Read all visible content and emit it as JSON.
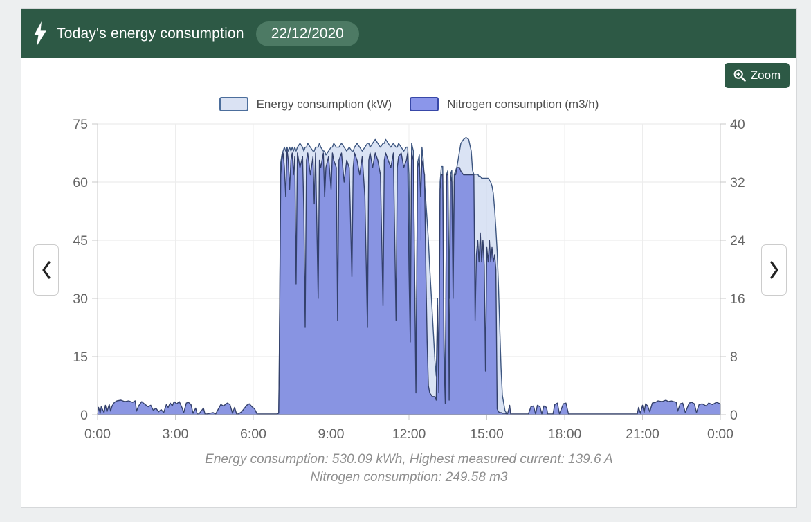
{
  "header": {
    "title": "Today's energy consumption",
    "date": "22/12/2020",
    "colors": {
      "header_green": "#2d5945",
      "badge_green": "#4d7a64"
    }
  },
  "toolbar": {
    "zoom_label": "Zoom"
  },
  "footer": {
    "line1": "Energy consumption: 530.09 kWh, Highest measured current: 139.6 A",
    "line2": "Nitrogen consumption: 249.58 m3"
  },
  "chart_data": {
    "type": "area",
    "title": "",
    "legend_position": "top",
    "grid": true,
    "x_axis": {
      "ticks": [
        "0:00",
        "3:00",
        "6:00",
        "9:00",
        "12:00",
        "15:00",
        "18:00",
        "21:00",
        "0:00"
      ],
      "hours": [
        0,
        3,
        6,
        9,
        12,
        15,
        18,
        21,
        24
      ],
      "range_hours": [
        0,
        24
      ]
    },
    "left_axis": {
      "ticks": [
        0,
        15,
        30,
        45,
        60,
        75
      ],
      "max": 75,
      "unit": "kW"
    },
    "right_axis": {
      "ticks": [
        0,
        8,
        16,
        24,
        32,
        40
      ],
      "max": 40,
      "unit": "m3/h"
    },
    "series": [
      {
        "name": "Energy consumption (kW)",
        "axis": "left",
        "fill": "rgba(206,217,240,0.75)",
        "stroke": "#3d5680",
        "legend_fill": "#dae2f3",
        "legend_border": "#4c6e9c"
      },
      {
        "name": "Nitrogen consumption (m3/h)",
        "axis": "right",
        "fill": "rgba(129,141,223,0.92)",
        "stroke": "#33406b",
        "legend_fill": "#8b96ea",
        "legend_border": "#3848a8"
      }
    ],
    "points_format": [
      "hour",
      "energy_kW",
      "nitrogen_m3h"
    ],
    "points": [
      [
        0,
        0,
        0.2
      ],
      [
        0.04,
        0,
        1.0
      ],
      [
        0.1,
        0,
        0.2
      ],
      [
        0.14,
        0,
        1.1
      ],
      [
        0.25,
        0,
        0.3
      ],
      [
        0.3,
        0,
        1.3
      ],
      [
        0.36,
        0,
        0.4
      ],
      [
        0.45,
        0,
        1.4
      ],
      [
        0.5,
        0,
        0.5
      ],
      [
        0.56,
        0,
        1.2
      ],
      [
        0.65,
        0,
        1.7
      ],
      [
        0.75,
        0,
        1.9
      ],
      [
        0.9,
        0,
        2.0
      ],
      [
        1.05,
        0,
        1.8
      ],
      [
        1.2,
        0,
        1.9
      ],
      [
        1.35,
        0,
        1.7
      ],
      [
        1.45,
        0,
        1.9
      ],
      [
        1.5,
        0,
        0.5
      ],
      [
        1.58,
        0,
        1.2
      ],
      [
        1.7,
        0,
        1.8
      ],
      [
        1.8,
        0,
        1.5
      ],
      [
        1.95,
        0,
        1.1
      ],
      [
        2.05,
        0,
        1.3
      ],
      [
        2.15,
        0,
        0.6
      ],
      [
        2.25,
        0,
        0.9
      ],
      [
        2.35,
        0,
        0.4
      ],
      [
        2.45,
        0,
        0.7
      ],
      [
        2.55,
        0,
        0.3
      ],
      [
        2.65,
        0,
        1.4
      ],
      [
        2.72,
        0,
        1.0
      ],
      [
        2.8,
        0,
        1.6
      ],
      [
        2.88,
        0,
        1.2
      ],
      [
        2.95,
        0,
        1.8
      ],
      [
        3.05,
        0,
        1.5
      ],
      [
        3.15,
        0,
        1.8
      ],
      [
        3.25,
        0,
        1.0
      ],
      [
        3.32,
        0,
        0.3
      ],
      [
        3.42,
        0,
        1.6
      ],
      [
        3.5,
        0,
        1.7
      ],
      [
        3.6,
        0,
        1.4
      ],
      [
        3.68,
        0,
        0.2
      ],
      [
        3.78,
        0,
        0.9
      ],
      [
        3.84,
        0,
        0.1
      ],
      [
        3.9,
        0,
        0.1
      ],
      [
        4.08,
        0,
        0.9
      ],
      [
        4.14,
        0,
        0.1
      ],
      [
        4.2,
        0,
        0.1
      ],
      [
        4.45,
        0,
        0.3
      ],
      [
        4.55,
        0,
        0.1
      ],
      [
        4.75,
        0,
        1.4
      ],
      [
        4.85,
        0,
        1.2
      ],
      [
        5.0,
        0,
        1.6
      ],
      [
        5.1,
        0,
        1.4
      ],
      [
        5.2,
        0,
        0.2
      ],
      [
        5.28,
        0,
        1.0
      ],
      [
        5.36,
        0,
        0.1
      ],
      [
        5.42,
        0,
        0.1
      ],
      [
        5.55,
        0,
        0.4
      ],
      [
        5.75,
        0,
        1.3
      ],
      [
        5.85,
        0,
        1.5
      ],
      [
        5.95,
        0,
        1.1
      ],
      [
        6.05,
        0,
        0.8
      ],
      [
        6.15,
        0,
        0.1
      ],
      [
        6.3,
        0,
        0.1
      ],
      [
        6.9,
        0,
        0.1
      ],
      [
        6.98,
        0,
        0.2
      ],
      [
        7.0,
        12,
        6
      ],
      [
        7.06,
        65,
        33
      ],
      [
        7.1,
        67,
        35
      ],
      [
        7.15,
        68,
        36
      ],
      [
        7.2,
        69,
        34
      ],
      [
        7.25,
        68,
        30
      ],
      [
        7.3,
        69,
        36.5
      ],
      [
        7.35,
        68,
        35
      ],
      [
        7.4,
        69,
        31
      ],
      [
        7.45,
        68,
        35
      ],
      [
        7.5,
        69,
        36
      ],
      [
        7.55,
        68,
        33
      ],
      [
        7.6,
        69,
        35.5
      ],
      [
        7.65,
        68,
        18
      ],
      [
        7.7,
        69,
        36
      ],
      [
        7.8,
        70,
        34
      ],
      [
        7.9,
        69,
        35.5
      ],
      [
        7.95,
        68,
        28
      ],
      [
        8.0,
        69,
        12
      ],
      [
        8.05,
        69,
        35
      ],
      [
        8.1,
        70,
        36
      ],
      [
        8.2,
        69,
        33
      ],
      [
        8.3,
        68,
        35.5
      ],
      [
        8.35,
        68,
        29
      ],
      [
        8.4,
        69,
        36
      ],
      [
        8.5,
        69,
        16
      ],
      [
        8.55,
        70,
        35
      ],
      [
        8.6,
        69,
        34
      ],
      [
        8.7,
        68,
        36
      ],
      [
        8.75,
        68,
        30
      ],
      [
        8.8,
        67,
        34
      ],
      [
        8.9,
        68,
        35.5
      ],
      [
        9.0,
        69,
        31
      ],
      [
        9.05,
        69,
        36
      ],
      [
        9.1,
        70,
        35
      ],
      [
        9.2,
        69,
        34
      ],
      [
        9.25,
        69,
        13
      ],
      [
        9.3,
        69,
        35
      ],
      [
        9.4,
        70,
        36
      ],
      [
        9.5,
        69,
        32
      ],
      [
        9.6,
        68,
        35
      ],
      [
        9.7,
        69,
        34
      ],
      [
        9.8,
        68,
        19
      ],
      [
        9.85,
        68,
        34
      ],
      [
        9.9,
        69,
        36
      ],
      [
        10.0,
        70,
        35
      ],
      [
        10.1,
        69,
        33
      ],
      [
        10.2,
        68,
        35.5
      ],
      [
        10.3,
        69,
        30
      ],
      [
        10.4,
        70,
        12
      ],
      [
        10.45,
        70,
        35
      ],
      [
        10.5,
        69,
        36
      ],
      [
        10.6,
        70,
        34
      ],
      [
        10.7,
        71,
        36
      ],
      [
        10.8,
        70,
        35
      ],
      [
        10.9,
        69,
        33
      ],
      [
        11.0,
        70,
        15
      ],
      [
        11.05,
        70,
        35
      ],
      [
        11.1,
        71,
        36
      ],
      [
        11.2,
        70,
        35
      ],
      [
        11.3,
        69,
        34
      ],
      [
        11.4,
        70,
        36
      ],
      [
        11.5,
        69,
        13
      ],
      [
        11.55,
        69,
        34
      ],
      [
        11.6,
        70,
        35.5
      ],
      [
        11.7,
        69,
        36
      ],
      [
        11.8,
        68,
        34
      ],
      [
        11.9,
        69,
        35
      ],
      [
        11.95,
        69,
        36
      ],
      [
        12.0,
        62,
        20
      ],
      [
        12.05,
        20,
        10
      ],
      [
        12.1,
        70,
        36
      ],
      [
        12.17,
        68,
        35
      ],
      [
        12.22,
        35,
        18
      ],
      [
        12.27,
        8,
        3
      ],
      [
        12.33,
        65,
        34
      ],
      [
        12.4,
        67,
        35
      ],
      [
        12.45,
        45,
        30
      ],
      [
        12.5,
        69,
        35
      ],
      [
        12.55,
        66,
        34
      ],
      [
        12.6,
        60,
        33
      ],
      [
        12.65,
        55,
        20
      ],
      [
        12.7,
        50,
        10
      ],
      [
        12.75,
        45,
        4
      ],
      [
        12.8,
        38,
        3
      ],
      [
        12.9,
        26,
        2.5
      ],
      [
        13.0,
        14,
        2.5
      ],
      [
        13.05,
        10,
        2
      ],
      [
        13.1,
        30,
        15
      ],
      [
        13.15,
        10,
        3
      ],
      [
        13.2,
        60,
        31
      ],
      [
        13.25,
        64,
        33
      ],
      [
        13.3,
        64,
        33
      ],
      [
        13.35,
        20,
        8
      ],
      [
        13.4,
        5,
        1.5
      ],
      [
        13.45,
        62,
        33
      ],
      [
        13.5,
        63,
        33
      ],
      [
        13.55,
        30,
        2
      ],
      [
        13.6,
        62,
        33
      ],
      [
        13.65,
        63,
        32
      ],
      [
        13.7,
        40,
        16
      ],
      [
        13.75,
        62,
        33
      ],
      [
        13.8,
        63,
        33
      ],
      [
        13.85,
        64,
        34
      ],
      [
        13.9,
        66,
        34
      ],
      [
        13.95,
        68,
        34
      ],
      [
        14.0,
        70,
        33.5
      ],
      [
        14.1,
        71,
        33
      ],
      [
        14.2,
        71.5,
        33
      ],
      [
        14.3,
        71,
        33
      ],
      [
        14.4,
        68,
        33
      ],
      [
        14.45,
        63,
        33
      ],
      [
        14.5,
        62,
        33
      ],
      [
        14.55,
        62,
        13
      ],
      [
        14.6,
        62,
        22
      ],
      [
        14.65,
        62,
        24
      ],
      [
        14.7,
        61.5,
        21
      ],
      [
        14.75,
        61.5,
        25
      ],
      [
        14.8,
        61,
        21
      ],
      [
        14.85,
        61,
        24
      ],
      [
        14.9,
        61,
        20.5
      ],
      [
        14.95,
        61,
        6
      ],
      [
        15.0,
        61,
        23
      ],
      [
        15.05,
        61,
        21
      ],
      [
        15.1,
        60.5,
        24
      ],
      [
        15.15,
        60,
        21
      ],
      [
        15.2,
        59,
        23
      ],
      [
        15.25,
        57,
        21
      ],
      [
        15.3,
        53,
        22
      ],
      [
        15.35,
        48,
        20
      ],
      [
        15.4,
        42,
        0.8
      ],
      [
        15.45,
        33,
        0.4
      ],
      [
        15.5,
        22,
        0.3
      ],
      [
        15.55,
        12,
        0.3
      ],
      [
        15.6,
        5,
        0.2
      ],
      [
        15.7,
        1,
        0.2
      ],
      [
        15.8,
        0,
        0.1
      ],
      [
        15.88,
        0,
        1.3
      ],
      [
        15.92,
        0,
        0.1
      ],
      [
        16.6,
        0,
        0.1
      ],
      [
        16.7,
        0,
        1.1
      ],
      [
        16.8,
        0,
        1.2
      ],
      [
        16.88,
        0,
        0.1
      ],
      [
        16.95,
        0,
        1.3
      ],
      [
        17.05,
        0,
        1.1
      ],
      [
        17.12,
        0,
        0.1
      ],
      [
        17.2,
        0,
        1.2
      ],
      [
        17.3,
        0,
        1.0
      ],
      [
        17.35,
        0,
        0.1
      ],
      [
        17.55,
        0,
        0.1
      ],
      [
        17.62,
        0,
        1.4
      ],
      [
        17.72,
        0,
        1.6
      ],
      [
        17.8,
        0,
        0.1
      ],
      [
        17.95,
        0,
        1.5
      ],
      [
        18.05,
        0,
        1.6
      ],
      [
        18.15,
        0,
        0.1
      ],
      [
        18.4,
        0,
        0.1
      ],
      [
        20.8,
        0,
        0.1
      ],
      [
        20.85,
        0,
        1.0
      ],
      [
        20.92,
        0,
        0.2
      ],
      [
        21.0,
        0,
        1.3
      ],
      [
        21.06,
        0,
        0.3
      ],
      [
        21.12,
        0,
        1.5
      ],
      [
        21.2,
        0,
        1.2
      ],
      [
        21.28,
        0,
        0.4
      ],
      [
        21.38,
        0,
        1.6
      ],
      [
        21.5,
        0,
        1.7
      ],
      [
        21.6,
        0,
        1.9
      ],
      [
        21.75,
        0,
        1.8
      ],
      [
        21.9,
        0,
        2.0
      ],
      [
        22.0,
        0,
        1.8
      ],
      [
        22.1,
        0,
        1.9
      ],
      [
        22.2,
        0,
        1.8
      ],
      [
        22.3,
        0,
        1.7
      ],
      [
        22.36,
        0,
        0.5
      ],
      [
        22.45,
        0,
        1.5
      ],
      [
        22.55,
        0,
        1.6
      ],
      [
        22.65,
        0,
        0.3
      ],
      [
        22.8,
        0,
        1.6
      ],
      [
        22.9,
        0,
        1.7
      ],
      [
        23.0,
        0,
        1.5
      ],
      [
        23.08,
        0,
        0.3
      ],
      [
        23.18,
        0,
        1.4
      ],
      [
        23.3,
        0,
        1.5
      ],
      [
        23.45,
        0,
        1.2
      ],
      [
        23.55,
        0,
        1.6
      ],
      [
        23.7,
        0,
        1.4
      ],
      [
        23.85,
        0,
        1.7
      ],
      [
        24.0,
        0,
        1.5
      ]
    ]
  }
}
